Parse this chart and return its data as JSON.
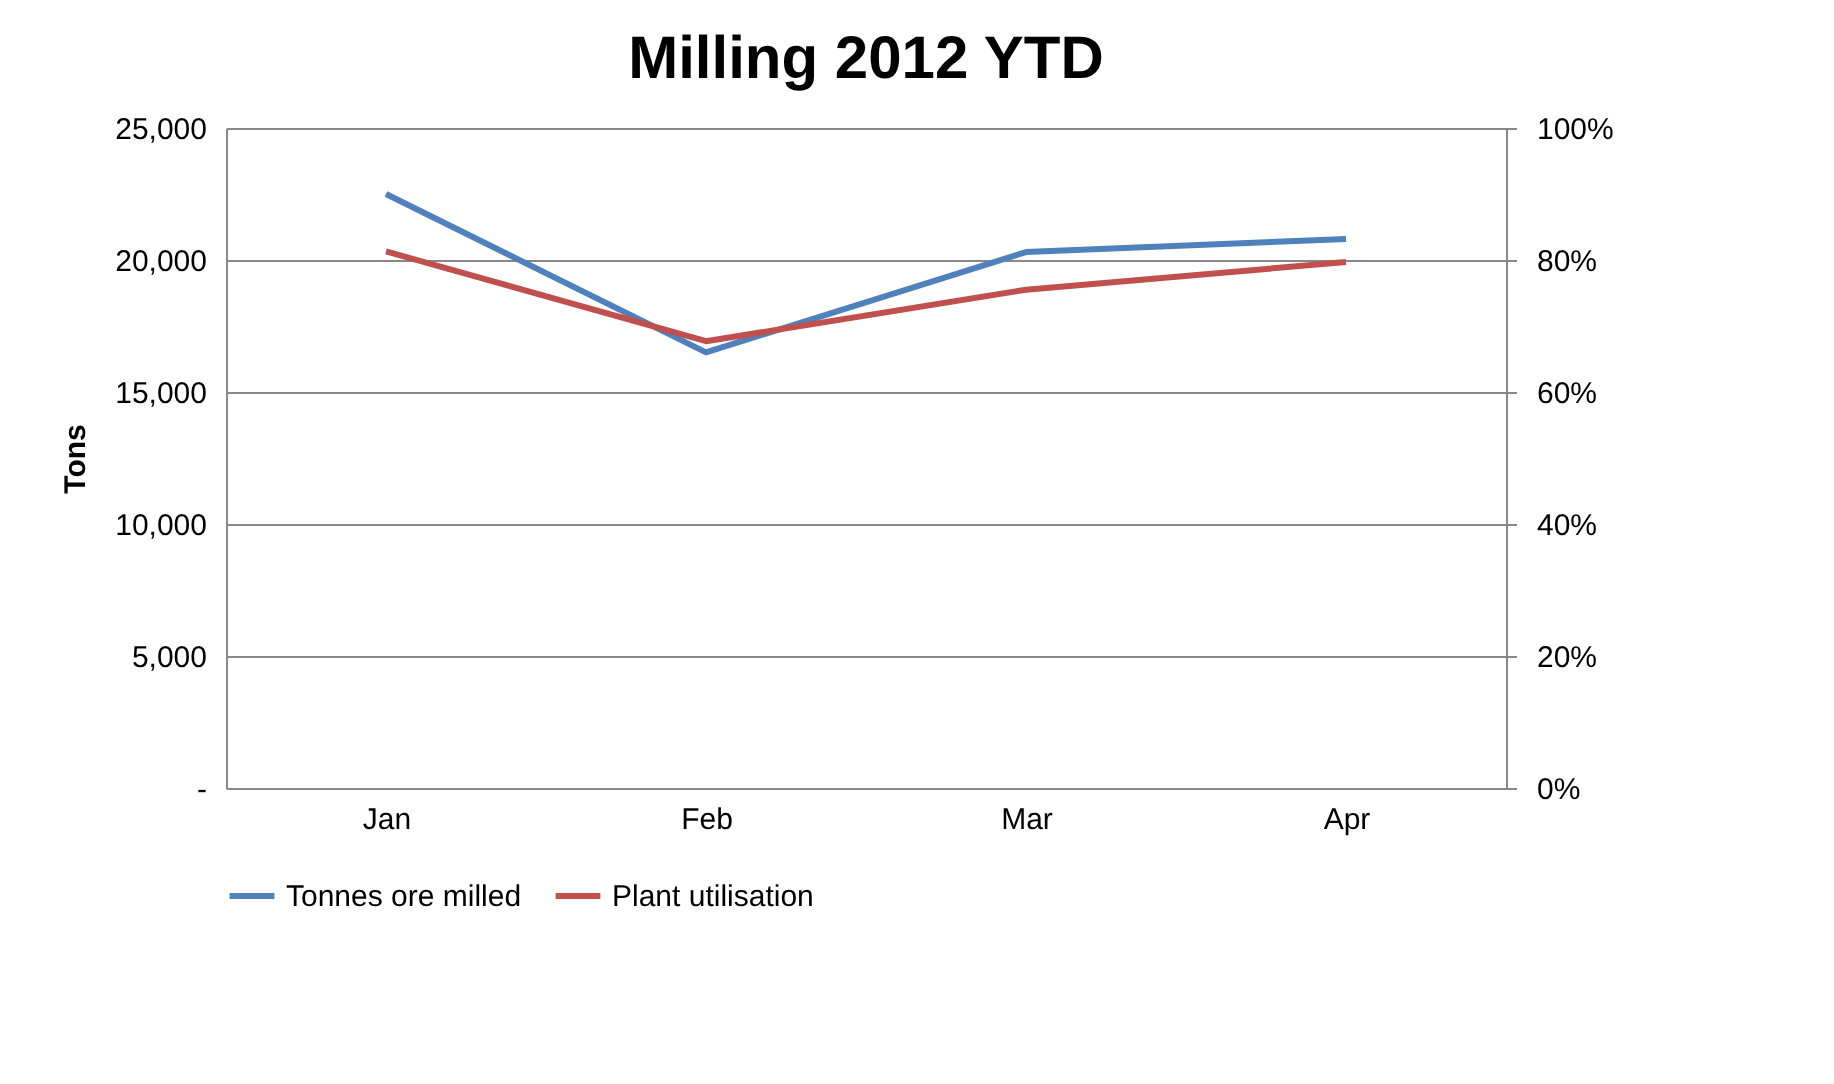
{
  "chart_data": {
    "type": "line",
    "title": "Milling 2012 YTD",
    "ylabel": "Tons",
    "categories": [
      "Jan",
      "Feb",
      "Mar",
      "Apr"
    ],
    "series": [
      {
        "name": "Tonnes ore milled",
        "color": "#4f81bd",
        "values": [
          22500,
          16500,
          20300,
          20800
        ]
      },
      {
        "name": "Plant utilisation",
        "color": "#c0504d",
        "values": [
          81.3,
          67.7,
          75.5,
          79.7
        ],
        "axis": "y2"
      }
    ],
    "ylim": [
      0,
      25000
    ],
    "yticks": [
      {
        "value": 0,
        "label": "-"
      },
      {
        "value": 5000,
        "label": "5,000"
      },
      {
        "value": 10000,
        "label": "10,000"
      },
      {
        "value": 15000,
        "label": "15,000"
      },
      {
        "value": 20000,
        "label": "20,000"
      },
      {
        "value": 25000,
        "label": "25,000"
      }
    ],
    "y2lim": [
      0,
      100
    ],
    "y2ticks": [
      {
        "value": 0,
        "label": "0%"
      },
      {
        "value": 20,
        "label": "20%"
      },
      {
        "value": 40,
        "label": "40%"
      },
      {
        "value": 60,
        "label": "60%"
      },
      {
        "value": 80,
        "label": "80%"
      },
      {
        "value": 100,
        "label": "100%"
      }
    ],
    "grid": "y",
    "legend": "bottom",
    "marker": "none",
    "line_style": "solid"
  }
}
